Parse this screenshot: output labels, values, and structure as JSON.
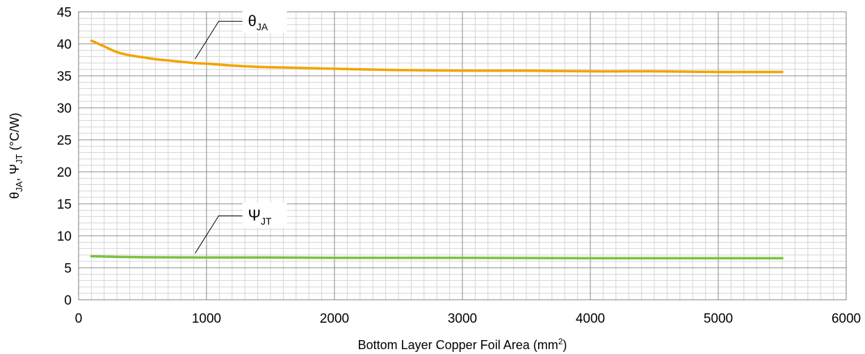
{
  "chart_data": {
    "type": "line",
    "title": "",
    "xlabel": "Bottom Layer Copper Foil Area (mm",
    "xlabel_sup": "2",
    "xlabel_end": ")",
    "ylabel_parts": [
      "θ",
      "JA",
      ", Ψ",
      "JT",
      " (°C/W)"
    ],
    "xlim": [
      0,
      6000
    ],
    "ylim": [
      0,
      45
    ],
    "xticks": [
      0,
      1000,
      2000,
      3000,
      4000,
      5000,
      6000
    ],
    "yticks": [
      0,
      5,
      10,
      15,
      20,
      25,
      30,
      35,
      40,
      45
    ],
    "grid": true,
    "series": [
      {
        "name": "θJA",
        "label_main": "θ",
        "label_sub": "JA",
        "color": "#F0A500",
        "x": [
          100,
          200,
          300,
          400,
          500,
          600,
          700,
          800,
          900,
          1000,
          1200,
          1400,
          1600,
          1800,
          2000,
          2500,
          3000,
          3500,
          4000,
          4500,
          5000,
          5500
        ],
        "y": [
          40.5,
          39.6,
          38.7,
          38.2,
          37.9,
          37.6,
          37.4,
          37.2,
          37.0,
          36.9,
          36.6,
          36.4,
          36.3,
          36.2,
          36.1,
          35.9,
          35.8,
          35.8,
          35.7,
          35.7,
          35.6,
          35.6
        ]
      },
      {
        "name": "ΨJT",
        "label_main": "Ψ",
        "label_sub": "JT",
        "color": "#7CC242",
        "x": [
          100,
          300,
          500,
          1000,
          1500,
          2000,
          3000,
          4000,
          5000,
          5500
        ],
        "y": [
          6.8,
          6.7,
          6.65,
          6.6,
          6.6,
          6.55,
          6.55,
          6.5,
          6.5,
          6.5
        ]
      }
    ]
  }
}
